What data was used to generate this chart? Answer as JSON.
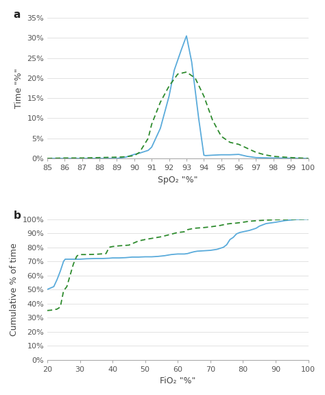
{
  "panel_a": {
    "blue_x": [
      85,
      86,
      87,
      88,
      89,
      89.5,
      90,
      90.3,
      90.8,
      91,
      91.5,
      92,
      92.3,
      92.7,
      93.0,
      93.3,
      93.7,
      94.0,
      94.1,
      94.5,
      95,
      95.5,
      96,
      96.5,
      97,
      98,
      99,
      100
    ],
    "blue_y": [
      0.0,
      0.0,
      0.0,
      0.0,
      0.0,
      0.003,
      0.01,
      0.013,
      0.02,
      0.028,
      0.075,
      0.155,
      0.22,
      0.27,
      0.305,
      0.24,
      0.1,
      0.008,
      0.007,
      0.008,
      0.009,
      0.009,
      0.01,
      0.005,
      0.002,
      0.001,
      0.0005,
      0.0
    ],
    "green_x": [
      85,
      86,
      87,
      88,
      89,
      89.5,
      90,
      90.3,
      90.8,
      91,
      91.5,
      92,
      92.5,
      93,
      93.5,
      94,
      94.5,
      95,
      95.5,
      96,
      96.5,
      97,
      97.5,
      98,
      99,
      100
    ],
    "green_y": [
      0.0,
      0.001,
      0.001,
      0.002,
      0.003,
      0.004,
      0.007,
      0.015,
      0.05,
      0.085,
      0.14,
      0.18,
      0.21,
      0.215,
      0.2,
      0.155,
      0.095,
      0.055,
      0.04,
      0.035,
      0.025,
      0.015,
      0.009,
      0.005,
      0.002,
      0.0
    ],
    "blue_color": "#5aabdb",
    "green_color": "#2e8b2e",
    "xlabel": "SpO₂ \"%\"",
    "ylabel": "Time \"%\"",
    "xlim": [
      85,
      100
    ],
    "ylim": [
      0,
      0.35
    ],
    "yticks": [
      0.0,
      0.05,
      0.1,
      0.15,
      0.2,
      0.25,
      0.3,
      0.35
    ],
    "ytick_labels": [
      "0%",
      "5%",
      "10%",
      "15%",
      "20%",
      "25%",
      "30%",
      "35%"
    ],
    "xticks": [
      85,
      86,
      87,
      88,
      89,
      90,
      91,
      92,
      93,
      94,
      95,
      96,
      97,
      98,
      99,
      100
    ]
  },
  "panel_b": {
    "blue_x": [
      20,
      22,
      23,
      24,
      25,
      25.5,
      26,
      27,
      28,
      29,
      30,
      32,
      35,
      37,
      39,
      40,
      42,
      44,
      46,
      48,
      50,
      52,
      54,
      56,
      58,
      60,
      62,
      63,
      64,
      65,
      66,
      68,
      70,
      72,
      74,
      75,
      76,
      77,
      78,
      79,
      80,
      82,
      84,
      85,
      87,
      90,
      93,
      96,
      100
    ],
    "blue_y": [
      0.5,
      0.52,
      0.57,
      0.63,
      0.7,
      0.715,
      0.715,
      0.715,
      0.715,
      0.715,
      0.715,
      0.718,
      0.72,
      0.72,
      0.722,
      0.724,
      0.724,
      0.726,
      0.73,
      0.73,
      0.732,
      0.732,
      0.735,
      0.74,
      0.748,
      0.752,
      0.752,
      0.755,
      0.762,
      0.768,
      0.772,
      0.775,
      0.778,
      0.785,
      0.8,
      0.818,
      0.855,
      0.87,
      0.895,
      0.905,
      0.91,
      0.92,
      0.935,
      0.95,
      0.968,
      0.978,
      0.99,
      0.997,
      1.0
    ],
    "green_x": [
      20,
      21,
      22,
      23,
      24,
      25,
      26,
      27,
      28,
      29,
      29.5,
      30,
      31,
      32,
      35,
      38,
      39,
      40,
      42,
      45,
      48,
      50,
      55,
      60,
      62,
      63,
      65,
      68,
      70,
      73,
      75,
      76,
      78,
      80,
      82,
      85,
      88,
      90,
      93,
      96,
      100
    ],
    "green_y": [
      0.35,
      0.352,
      0.355,
      0.36,
      0.375,
      0.49,
      0.52,
      0.6,
      0.68,
      0.735,
      0.745,
      0.748,
      0.748,
      0.748,
      0.75,
      0.755,
      0.8,
      0.805,
      0.81,
      0.815,
      0.845,
      0.855,
      0.875,
      0.905,
      0.91,
      0.925,
      0.935,
      0.94,
      0.945,
      0.955,
      0.965,
      0.968,
      0.972,
      0.978,
      0.985,
      0.99,
      0.994,
      0.996,
      0.998,
      0.999,
      1.0
    ],
    "blue_color": "#5aabdb",
    "green_color": "#2e8b2e",
    "xlabel": "FiO₂ \"%\"",
    "ylabel": "Cumulative % of time",
    "xlim": [
      20,
      100
    ],
    "ylim": [
      0,
      1.0
    ],
    "yticks": [
      0.0,
      0.1,
      0.2,
      0.3,
      0.4,
      0.5,
      0.6,
      0.7,
      0.8,
      0.9,
      1.0
    ],
    "ytick_labels": [
      "0%",
      "10%",
      "20%",
      "30%",
      "40%",
      "50%",
      "60%",
      "70%",
      "80%",
      "90%",
      "100%"
    ],
    "xticks": [
      20,
      30,
      40,
      50,
      60,
      70,
      80,
      90,
      100
    ]
  },
  "background_color": "#ffffff",
  "label_fontsize": 9,
  "tick_fontsize": 8,
  "panel_label_fontsize": 11
}
